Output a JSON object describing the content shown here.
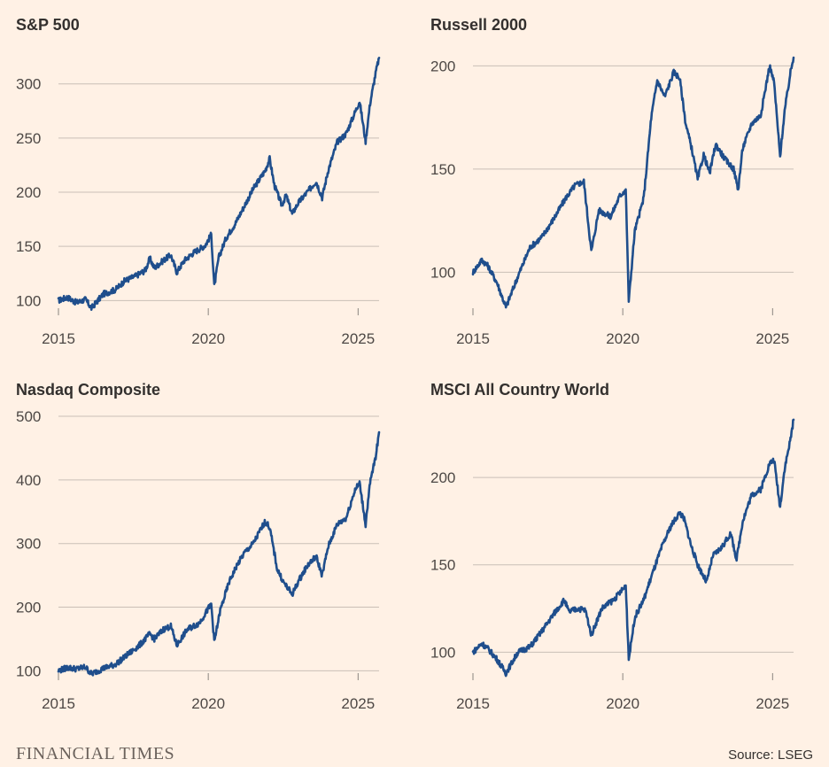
{
  "footer": {
    "brand": "FINANCIAL TIMES",
    "source": "Source: LSEG"
  },
  "colors": {
    "background": "#fff1e5",
    "line": "#1f4e8c",
    "grid": "#c9bfb6",
    "text": "#33302e"
  },
  "chart_data": [
    {
      "type": "line",
      "title": "S&P 500",
      "xlabel": "",
      "ylabel": "",
      "xlim": [
        2015,
        2025.7
      ],
      "ylim": [
        88,
        330
      ],
      "xticks": [
        2015,
        2020,
        2025
      ],
      "yticks": [
        100,
        150,
        200,
        250,
        300
      ],
      "grid": true,
      "series": [
        {
          "name": "S&P 500",
          "x": [
            2015,
            2015.3,
            2015.6,
            2015.9,
            2016.1,
            2016.5,
            2016.9,
            2017.2,
            2017.6,
            2017.9,
            2018.05,
            2018.2,
            2018.5,
            2018.75,
            2018.95,
            2019.2,
            2019.5,
            2019.9,
            2020.1,
            2020.2,
            2020.35,
            2020.6,
            2020.9,
            2021.2,
            2021.5,
            2021.9,
            2022.05,
            2022.2,
            2022.45,
            2022.6,
            2022.8,
            2023.0,
            2023.3,
            2023.6,
            2023.8,
            2024.0,
            2024.3,
            2024.6,
            2024.9,
            2025.05,
            2025.25,
            2025.4,
            2025.6,
            2025.7
          ],
          "values": [
            100,
            103,
            98,
            101,
            93,
            106,
            110,
            118,
            123,
            128,
            139,
            130,
            137,
            142,
            126,
            137,
            144,
            151,
            161,
            113,
            140,
            158,
            171,
            187,
            203,
            220,
            231,
            207,
            188,
            197,
            180,
            190,
            200,
            210,
            195,
            220,
            246,
            254,
            274,
            284,
            247,
            282,
            312,
            324
          ]
        }
      ]
    },
    {
      "type": "line",
      "title": "Russell 2000",
      "xlabel": "",
      "ylabel": "",
      "xlim": [
        2015,
        2025.7
      ],
      "ylim": [
        80,
        207
      ],
      "xticks": [
        2015,
        2020,
        2025
      ],
      "yticks": [
        100,
        150,
        200
      ],
      "grid": true,
      "series": [
        {
          "name": "Russell 2000",
          "x": [
            2015,
            2015.3,
            2015.5,
            2015.8,
            2016.1,
            2016.5,
            2016.9,
            2017.3,
            2017.7,
            2018.1,
            2018.4,
            2018.7,
            2018.95,
            2019.2,
            2019.6,
            2019.9,
            2020.1,
            2020.2,
            2020.4,
            2020.7,
            2020.95,
            2021.15,
            2021.4,
            2021.7,
            2021.9,
            2022.1,
            2022.3,
            2022.5,
            2022.7,
            2022.9,
            2023.1,
            2023.4,
            2023.7,
            2023.85,
            2024.0,
            2024.3,
            2024.6,
            2024.9,
            2025.05,
            2025.25,
            2025.4,
            2025.6,
            2025.7
          ],
          "values": [
            100,
            106,
            103,
            95,
            83,
            98,
            112,
            117,
            126,
            136,
            142,
            144,
            110,
            130,
            127,
            137,
            140,
            86,
            120,
            136,
            175,
            193,
            185,
            197,
            194,
            172,
            160,
            145,
            157,
            148,
            162,
            155,
            150,
            140,
            160,
            172,
            176,
            200,
            192,
            156,
            178,
            197,
            204
          ]
        }
      ]
    },
    {
      "type": "line",
      "title": "Nasdaq Composite",
      "xlabel": "",
      "ylabel": "",
      "xlim": [
        2015,
        2025.7
      ],
      "ylim": [
        88,
        500
      ],
      "xticks": [
        2015,
        2020,
        2025
      ],
      "yticks": [
        100,
        200,
        300,
        400,
        500
      ],
      "grid": true,
      "series": [
        {
          "name": "Nasdaq Composite",
          "x": [
            2015,
            2015.3,
            2015.6,
            2015.9,
            2016.1,
            2016.5,
            2016.9,
            2017.3,
            2017.7,
            2018.05,
            2018.2,
            2018.5,
            2018.75,
            2018.95,
            2019.3,
            2019.7,
            2020.1,
            2020.2,
            2020.4,
            2020.7,
            2020.95,
            2021.2,
            2021.5,
            2021.9,
            2022.05,
            2022.3,
            2022.5,
            2022.8,
            2023.0,
            2023.3,
            2023.6,
            2023.8,
            2024.0,
            2024.3,
            2024.6,
            2024.9,
            2025.05,
            2025.25,
            2025.4,
            2025.6,
            2025.7
          ],
          "values": [
            100,
            105,
            103,
            106,
            95,
            104,
            110,
            125,
            140,
            158,
            150,
            165,
            170,
            140,
            165,
            175,
            205,
            145,
            195,
            240,
            265,
            285,
            300,
            335,
            325,
            260,
            240,
            220,
            240,
            265,
            280,
            250,
            295,
            330,
            340,
            385,
            395,
            330,
            395,
            440,
            475
          ]
        }
      ]
    },
    {
      "type": "line",
      "title": "MSCI All Country World",
      "xlabel": "",
      "ylabel": "",
      "xlim": [
        2015,
        2025.7
      ],
      "ylim": [
        85,
        235
      ],
      "xticks": [
        2015,
        2020,
        2025
      ],
      "yticks": [
        100,
        150,
        200
      ],
      "grid": true,
      "series": [
        {
          "name": "MSCI All Country World",
          "x": [
            2015,
            2015.3,
            2015.5,
            2015.8,
            2016.1,
            2016.5,
            2016.9,
            2017.3,
            2017.7,
            2018.05,
            2018.2,
            2018.5,
            2018.75,
            2018.95,
            2019.3,
            2019.7,
            2020.1,
            2020.2,
            2020.4,
            2020.7,
            2020.95,
            2021.3,
            2021.6,
            2021.9,
            2022.05,
            2022.3,
            2022.5,
            2022.8,
            2023.0,
            2023.3,
            2023.6,
            2023.8,
            2024.0,
            2024.3,
            2024.6,
            2024.9,
            2025.05,
            2025.25,
            2025.4,
            2025.6,
            2025.7
          ],
          "values": [
            100,
            105,
            102,
            96,
            88,
            100,
            103,
            112,
            122,
            130,
            123,
            125,
            124,
            110,
            125,
            130,
            138,
            96,
            120,
            130,
            143,
            160,
            172,
            180,
            176,
            160,
            150,
            140,
            155,
            160,
            168,
            153,
            175,
            190,
            193,
            208,
            210,
            183,
            205,
            222,
            233
          ]
        }
      ]
    }
  ]
}
